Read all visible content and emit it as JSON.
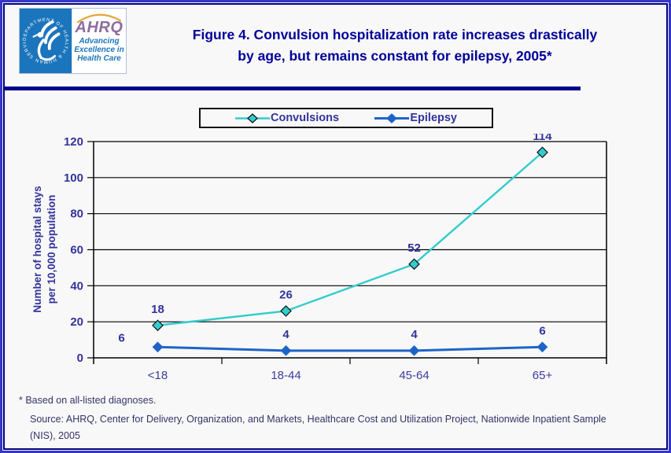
{
  "header": {
    "logo": {
      "seal_text": "DEPARTMENT OF HEALTH & HUMAN SERVICES · USA",
      "acronym": "AHRQ",
      "tagline_line1": "Advancing",
      "tagline_line2": "Excellence in",
      "tagline_line3": "Health Care"
    },
    "title_line1": "Figure 4. Convulsion hospitalization rate increases drastically",
    "title_line2": "by age, but remains constant for epilepsy, 2005*"
  },
  "chart_data": {
    "type": "line",
    "categories": [
      "<18",
      "18-44",
      "45-64",
      "65+"
    ],
    "series": [
      {
        "name": "Convulsions",
        "values": [
          18,
          26,
          52,
          114
        ],
        "color": "#33CCCC",
        "marker": "diamond",
        "marker_stroke": "#111111"
      },
      {
        "name": "Epilepsy",
        "values": [
          6,
          4,
          4,
          6
        ],
        "color": "#1E64C8",
        "marker": "diamond",
        "marker_stroke": "#1E64C8"
      }
    ],
    "ylabel_line1": "Number of hospital stays",
    "ylabel_line2": "per 10,000 population",
    "ylim": [
      0,
      120
    ],
    "ytick_step": 20,
    "grid": "horizontal",
    "legend_position": "top"
  },
  "footnotes": {
    "note": "* Based on all-listed diagnoses.",
    "source_line1": "Source: AHRQ, Center for Delivery, Organization, and Markets, Healthcare Cost and Utilization Project, Nationwide Inpatient Sample",
    "source_line2": "(NIS), 2005"
  },
  "colors": {
    "title_text": "#000099",
    "axis_text": "#333399",
    "footnote_text": "#333366",
    "gridline": "#000000",
    "convulsions_line": "#33CCCC",
    "epilepsy_line": "#1E64C8",
    "divider": "#00008B",
    "outer_border": "#3737C8",
    "inner_border": "#00007E",
    "hhs_blue": "#1B75BC",
    "ahrq_purple": "#8E6C9E",
    "arc_orange": "#E8A33D"
  }
}
